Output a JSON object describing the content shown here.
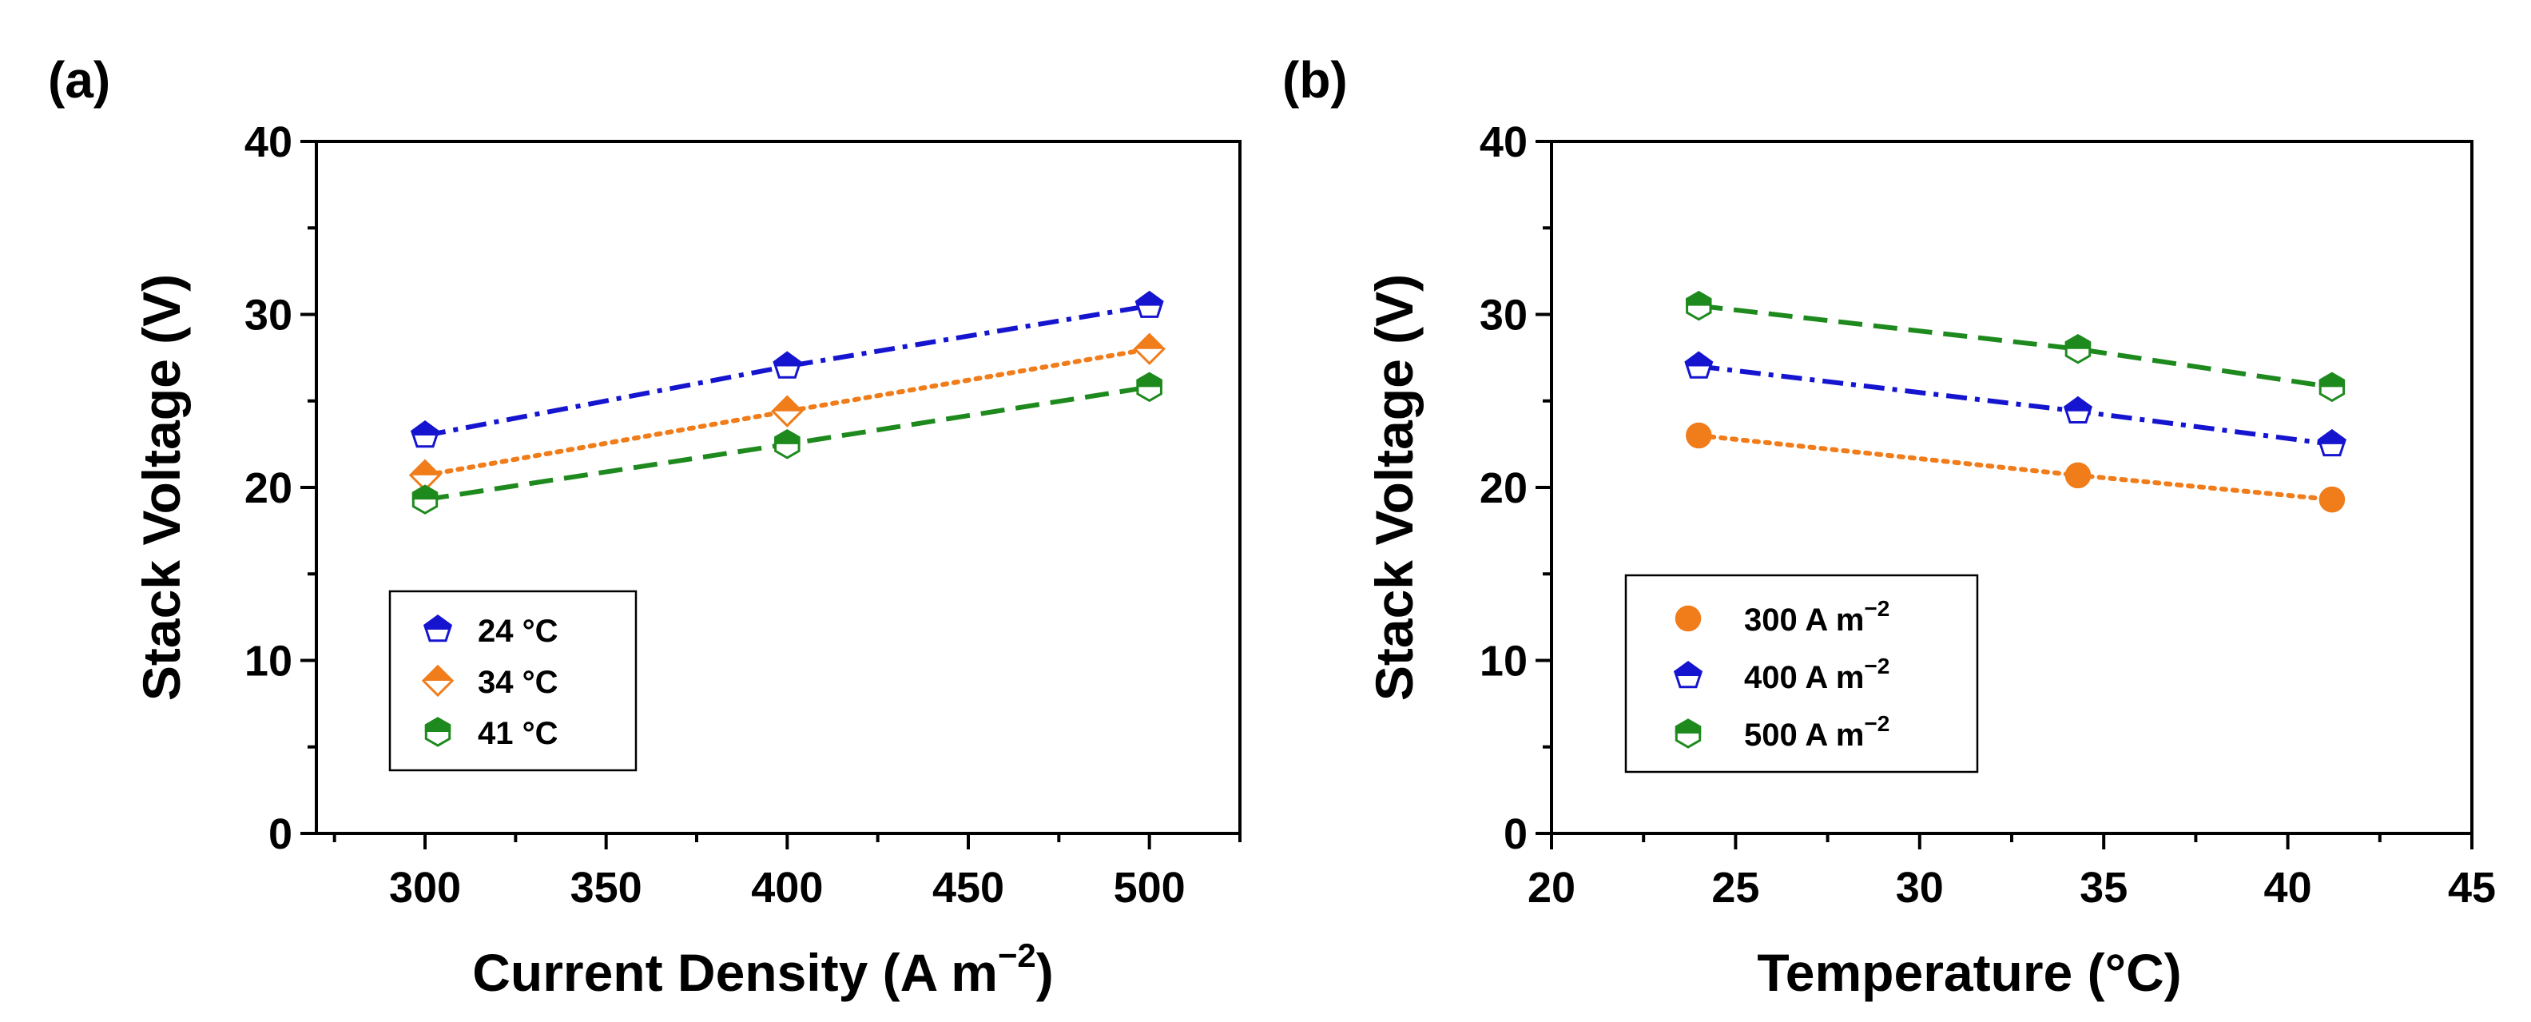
{
  "chart_data": [
    {
      "type": "line",
      "panel_label": "(a)",
      "title": "",
      "xlabel": "Current Density (A m",
      "xlabel_sup": "−2",
      "xlabel_end": ")",
      "ylabel": "Stack Voltage (V)",
      "xlim": [
        270,
        525
      ],
      "ylim": [
        0,
        40
      ],
      "xticks": [
        300,
        350,
        400,
        450,
        500
      ],
      "yticks": [
        0,
        10,
        20,
        30,
        40
      ],
      "grid": false,
      "legend_position": "bottom-left",
      "series": [
        {
          "name": "24 °C",
          "sup": "",
          "color": "#1515d0",
          "marker": "pentagon",
          "dash": "dashdot",
          "x": [
            300,
            400,
            500
          ],
          "y": [
            23.0,
            27.0,
            30.5
          ]
        },
        {
          "name": "34 °C",
          "sup": "",
          "color": "#f07c1a",
          "marker": "diamond",
          "dash": "dotted",
          "x": [
            300,
            400,
            500
          ],
          "y": [
            20.7,
            24.4,
            28.0
          ]
        },
        {
          "name": "41 °C",
          "sup": "",
          "color": "#1e8a1e",
          "marker": "hexagon",
          "dash": "dashed",
          "x": [
            300,
            400,
            500
          ],
          "y": [
            19.3,
            22.5,
            25.8
          ]
        }
      ]
    },
    {
      "type": "line",
      "panel_label": "(b)",
      "title": "",
      "xlabel": "Temperature (°C)",
      "xlabel_sup": "",
      "xlabel_end": "",
      "ylabel": "Stack Voltage (V)",
      "xlim": [
        20,
        45
      ],
      "ylim": [
        0,
        40
      ],
      "xticks": [
        20,
        25,
        30,
        35,
        40,
        45
      ],
      "yticks": [
        0,
        10,
        20,
        30,
        40
      ],
      "grid": false,
      "legend_position": "bottom-left",
      "series": [
        {
          "name": "300 A m",
          "sup": "−2",
          "color": "#f07c1a",
          "marker": "circle",
          "dash": "dotted",
          "x": [
            24,
            34.3,
            41.2
          ],
          "y": [
            23.0,
            20.7,
            19.3
          ]
        },
        {
          "name": "400 A m",
          "sup": "−2",
          "color": "#1515d0",
          "marker": "pentagon",
          "dash": "dashdot",
          "x": [
            24,
            34.3,
            41.2
          ],
          "y": [
            27.0,
            24.4,
            22.5
          ]
        },
        {
          "name": "500 A m",
          "sup": "−2",
          "color": "#1e8a1e",
          "marker": "hexagon",
          "dash": "dashed",
          "x": [
            24,
            34.3,
            41.2
          ],
          "y": [
            30.5,
            28.0,
            25.8
          ]
        }
      ]
    }
  ]
}
